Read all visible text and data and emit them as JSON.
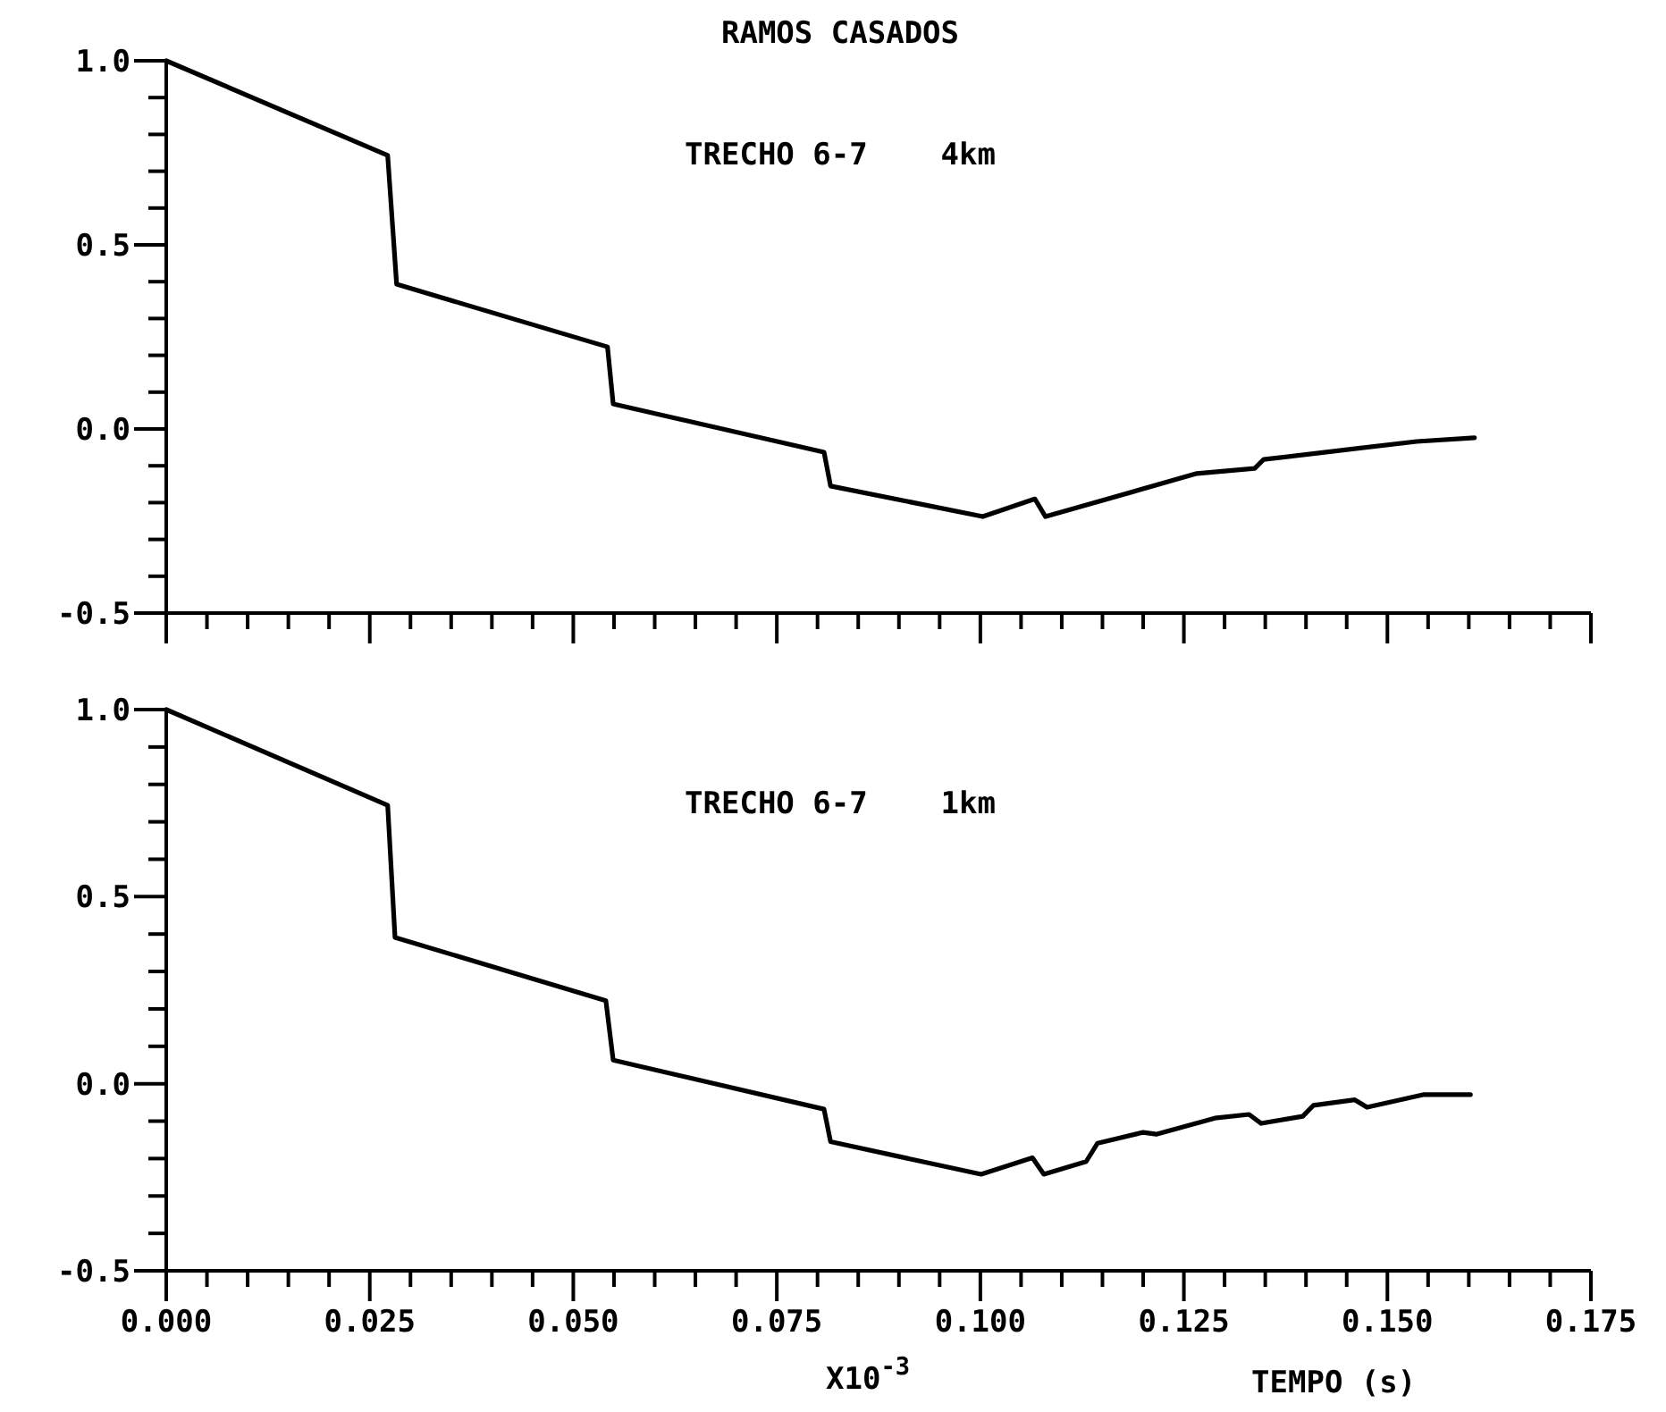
{
  "chart_data": [
    {
      "type": "line",
      "title": "RAMOS CASADOS",
      "annotations": [
        "TRECHO 6-7    4km"
      ],
      "tick_labels": "y",
      "grid": false,
      "xlim": [
        0,
        0.175
      ],
      "ylim": [
        -0.5,
        1.0
      ],
      "xticks": [
        {
          "value": 0,
          "label": null
        },
        {
          "value": 0.005,
          "label": null
        },
        {
          "value": 0.01,
          "label": null
        },
        {
          "value": 0.015,
          "label": null
        },
        {
          "value": 0.02,
          "label": null
        },
        {
          "value": 0.025,
          "label": null
        },
        {
          "value": 0.03,
          "label": null
        },
        {
          "value": 0.035,
          "label": null
        },
        {
          "value": 0.04,
          "label": null
        },
        {
          "value": 0.045,
          "label": null
        },
        {
          "value": 0.05,
          "label": null
        },
        {
          "value": 0.055,
          "label": null
        },
        {
          "value": 0.06,
          "label": null
        },
        {
          "value": 0.065,
          "label": null
        },
        {
          "value": 0.07,
          "label": null
        },
        {
          "value": 0.075,
          "label": null
        },
        {
          "value": 0.08,
          "label": null
        },
        {
          "value": 0.085,
          "label": null
        },
        {
          "value": 0.09,
          "label": null
        },
        {
          "value": 0.095,
          "label": null
        },
        {
          "value": 0.1,
          "label": null
        },
        {
          "value": 0.105,
          "label": null
        },
        {
          "value": 0.11,
          "label": null
        },
        {
          "value": 0.115,
          "label": null
        },
        {
          "value": 0.12,
          "label": null
        },
        {
          "value": 0.125,
          "label": null
        },
        {
          "value": 0.13,
          "label": null
        },
        {
          "value": 0.135,
          "label": null
        },
        {
          "value": 0.14,
          "label": null
        },
        {
          "value": 0.145,
          "label": null
        },
        {
          "value": 0.15,
          "label": null
        },
        {
          "value": 0.155,
          "label": null
        },
        {
          "value": 0.16,
          "label": null
        },
        {
          "value": 0.165,
          "label": null
        },
        {
          "value": 0.17,
          "label": null
        },
        {
          "value": 0.175,
          "label": null
        }
      ],
      "yticks": [
        {
          "value": -0.5,
          "label": "-0.5"
        },
        {
          "value": -0.4,
          "label": null
        },
        {
          "value": -0.3,
          "label": null
        },
        {
          "value": -0.2,
          "label": null
        },
        {
          "value": -0.1,
          "label": null
        },
        {
          "value": 0,
          "label": "0.0"
        },
        {
          "value": 0.1,
          "label": null
        },
        {
          "value": 0.2,
          "label": null
        },
        {
          "value": 0.3,
          "label": null
        },
        {
          "value": 0.4,
          "label": null
        },
        {
          "value": 0.5,
          "label": "0.5"
        },
        {
          "value": 0.6,
          "label": null
        },
        {
          "value": 0.7,
          "label": null
        },
        {
          "value": 0.8,
          "label": null
        },
        {
          "value": 0.9,
          "label": null
        },
        {
          "value": 1,
          "label": "1.0"
        }
      ],
      "series": [
        {
          "color": "#000000",
          "x": [
            0,
            0.0272,
            0.0283,
            0.0542,
            0.0549,
            0.0808,
            0.0816,
            0.1003,
            0.1067,
            0.108,
            0.1266,
            0.1337,
            0.1348,
            0.1536,
            0.1607
          ],
          "values": [
            1.0,
            0.743,
            0.393,
            0.223,
            0.068,
            -0.063,
            -0.155,
            -0.238,
            -0.19,
            -0.238,
            -0.121,
            -0.107,
            -0.083,
            -0.034,
            -0.024
          ]
        }
      ]
    },
    {
      "type": "line",
      "annotations": [
        "TRECHO 6-7    1km",
        "X10$^{-3}$"
      ],
      "xlabel": "TEMPO (s)",
      "grid": false,
      "xlim": [
        0,
        0.175
      ],
      "ylim": [
        -0.5,
        1.0
      ],
      "xticks": [
        {
          "value": 0,
          "label": "0.000"
        },
        {
          "value": 0.005,
          "label": null
        },
        {
          "value": 0.01,
          "label": null
        },
        {
          "value": 0.015,
          "label": null
        },
        {
          "value": 0.02,
          "label": null
        },
        {
          "value": 0.025,
          "label": "0.025"
        },
        {
          "value": 0.03,
          "label": null
        },
        {
          "value": 0.035,
          "label": null
        },
        {
          "value": 0.04,
          "label": null
        },
        {
          "value": 0.045,
          "label": null
        },
        {
          "value": 0.05,
          "label": "0.050"
        },
        {
          "value": 0.055,
          "label": null
        },
        {
          "value": 0.06,
          "label": null
        },
        {
          "value": 0.065,
          "label": null
        },
        {
          "value": 0.07,
          "label": null
        },
        {
          "value": 0.075,
          "label": "0.075"
        },
        {
          "value": 0.08,
          "label": null
        },
        {
          "value": 0.085,
          "label": null
        },
        {
          "value": 0.09,
          "label": null
        },
        {
          "value": 0.095,
          "label": null
        },
        {
          "value": 0.1,
          "label": "0.100"
        },
        {
          "value": 0.105,
          "label": null
        },
        {
          "value": 0.11,
          "label": null
        },
        {
          "value": 0.115,
          "label": null
        },
        {
          "value": 0.12,
          "label": null
        },
        {
          "value": 0.125,
          "label": "0.125"
        },
        {
          "value": 0.13,
          "label": null
        },
        {
          "value": 0.135,
          "label": null
        },
        {
          "value": 0.14,
          "label": null
        },
        {
          "value": 0.145,
          "label": null
        },
        {
          "value": 0.15,
          "label": "0.150"
        },
        {
          "value": 0.155,
          "label": null
        },
        {
          "value": 0.16,
          "label": null
        },
        {
          "value": 0.165,
          "label": null
        },
        {
          "value": 0.17,
          "label": null
        },
        {
          "value": 0.175,
          "label": "0.175"
        }
      ],
      "yticks": [
        {
          "value": -0.5,
          "label": "-0.5"
        },
        {
          "value": -0.4,
          "label": null
        },
        {
          "value": -0.3,
          "label": null
        },
        {
          "value": -0.2,
          "label": null
        },
        {
          "value": -0.1,
          "label": null
        },
        {
          "value": 0,
          "label": "0.0"
        },
        {
          "value": 0.1,
          "label": null
        },
        {
          "value": 0.2,
          "label": null
        },
        {
          "value": 0.3,
          "label": null
        },
        {
          "value": 0.4,
          "label": null
        },
        {
          "value": 0.5,
          "label": "0.5"
        },
        {
          "value": 0.6,
          "label": null
        },
        {
          "value": 0.7,
          "label": null
        },
        {
          "value": 0.8,
          "label": null
        },
        {
          "value": 0.9,
          "label": null
        },
        {
          "value": 1,
          "label": "1.0"
        }
      ],
      "series": [
        {
          "color": "#000000",
          "x": [
            0,
            0.0272,
            0.0281,
            0.054,
            0.0549,
            0.0808,
            0.0816,
            0.1001,
            0.1064,
            0.1078,
            0.113,
            0.1144,
            0.12,
            0.1216,
            0.1288,
            0.133,
            0.1345,
            0.1396,
            0.1409,
            0.146,
            0.1475,
            0.1545,
            0.1602
          ],
          "values": [
            1.0,
            0.744,
            0.391,
            0.222,
            0.063,
            -0.068,
            -0.155,
            -0.242,
            -0.198,
            -0.242,
            -0.208,
            -0.159,
            -0.13,
            -0.135,
            -0.092,
            -0.082,
            -0.106,
            -0.087,
            -0.058,
            -0.043,
            -0.063,
            -0.029,
            -0.029
          ]
        }
      ]
    }
  ]
}
